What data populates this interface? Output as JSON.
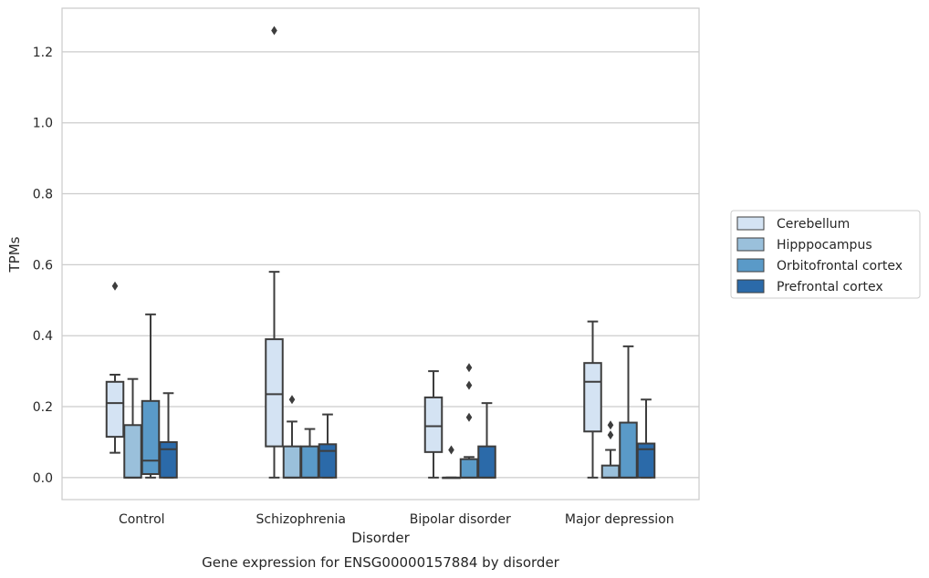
{
  "chart_data": {
    "type": "box",
    "title": "",
    "caption": "Gene expression for ENSG00000157884 by disorder",
    "xlabel": "Disorder",
    "ylabel": "TPMs",
    "ylim": [
      -0.062,
      1.323
    ],
    "yticks": [
      "0.0",
      "0.2",
      "0.4",
      "0.6",
      "0.8",
      "1.0",
      "1.2"
    ],
    "grid": "horizontal",
    "legend_position": "right",
    "categories": [
      "Control",
      "Schizophrenia",
      "Bipolar disorder",
      "Major depression"
    ],
    "series": [
      {
        "name": "Cerebellum",
        "color": "#d4e3f3",
        "boxes": [
          {
            "whislo": 0.07,
            "q1": 0.115,
            "med": 0.21,
            "q3": 0.27,
            "whishi": 0.29,
            "fliers": [
              0.54
            ]
          },
          {
            "whislo": 0.0,
            "q1": 0.088,
            "med": 0.235,
            "q3": 0.39,
            "whishi": 0.58,
            "fliers": [
              1.26
            ]
          },
          {
            "whislo": 0.0,
            "q1": 0.072,
            "med": 0.145,
            "q3": 0.226,
            "whishi": 0.3,
            "fliers": []
          },
          {
            "whislo": 0.0,
            "q1": 0.13,
            "med": 0.27,
            "q3": 0.323,
            "whishi": 0.44,
            "fliers": []
          }
        ]
      },
      {
        "name": "Hipppocampus",
        "color": "#9ac0db",
        "boxes": [
          {
            "whislo": 0.0,
            "q1": 0.0,
            "med": 0.0,
            "q3": 0.148,
            "whishi": 0.278,
            "fliers": []
          },
          {
            "whislo": 0.0,
            "q1": 0.0,
            "med": 0.0,
            "q3": 0.088,
            "whishi": 0.158,
            "fliers": [
              0.22
            ]
          },
          {
            "whislo": 0.0,
            "q1": 0.0,
            "med": 0.0,
            "q3": 0.0,
            "whishi": 0.0,
            "fliers": [
              0.078
            ]
          },
          {
            "whislo": 0.0,
            "q1": 0.0,
            "med": 0.0,
            "q3": 0.034,
            "whishi": 0.078,
            "fliers": [
              0.12,
              0.148
            ]
          }
        ]
      },
      {
        "name": "Orbitofrontal cortex",
        "color": "#5a9ac8",
        "boxes": [
          {
            "whislo": 0.0,
            "q1": 0.01,
            "med": 0.048,
            "q3": 0.216,
            "whishi": 0.46,
            "fliers": []
          },
          {
            "whislo": 0.0,
            "q1": 0.0,
            "med": 0.0,
            "q3": 0.088,
            "whishi": 0.137,
            "fliers": []
          },
          {
            "whislo": 0.0,
            "q1": 0.0,
            "med": 0.0,
            "q3": 0.052,
            "whishi": 0.058,
            "fliers": [
              0.17,
              0.26,
              0.31
            ]
          },
          {
            "whislo": 0.0,
            "q1": 0.0,
            "med": 0.0,
            "q3": 0.155,
            "whishi": 0.37,
            "fliers": []
          }
        ]
      },
      {
        "name": "Prefrontal cortex",
        "color": "#2b6aa9",
        "boxes": [
          {
            "whislo": 0.0,
            "q1": 0.0,
            "med": 0.08,
            "q3": 0.1,
            "whishi": 0.238,
            "fliers": []
          },
          {
            "whislo": 0.0,
            "q1": 0.0,
            "med": 0.075,
            "q3": 0.094,
            "whishi": 0.178,
            "fliers": []
          },
          {
            "whislo": 0.0,
            "q1": 0.0,
            "med": 0.0,
            "q3": 0.088,
            "whishi": 0.21,
            "fliers": []
          },
          {
            "whislo": 0.0,
            "q1": 0.0,
            "med": 0.08,
            "q3": 0.096,
            "whishi": 0.22,
            "fliers": []
          }
        ]
      }
    ]
  }
}
